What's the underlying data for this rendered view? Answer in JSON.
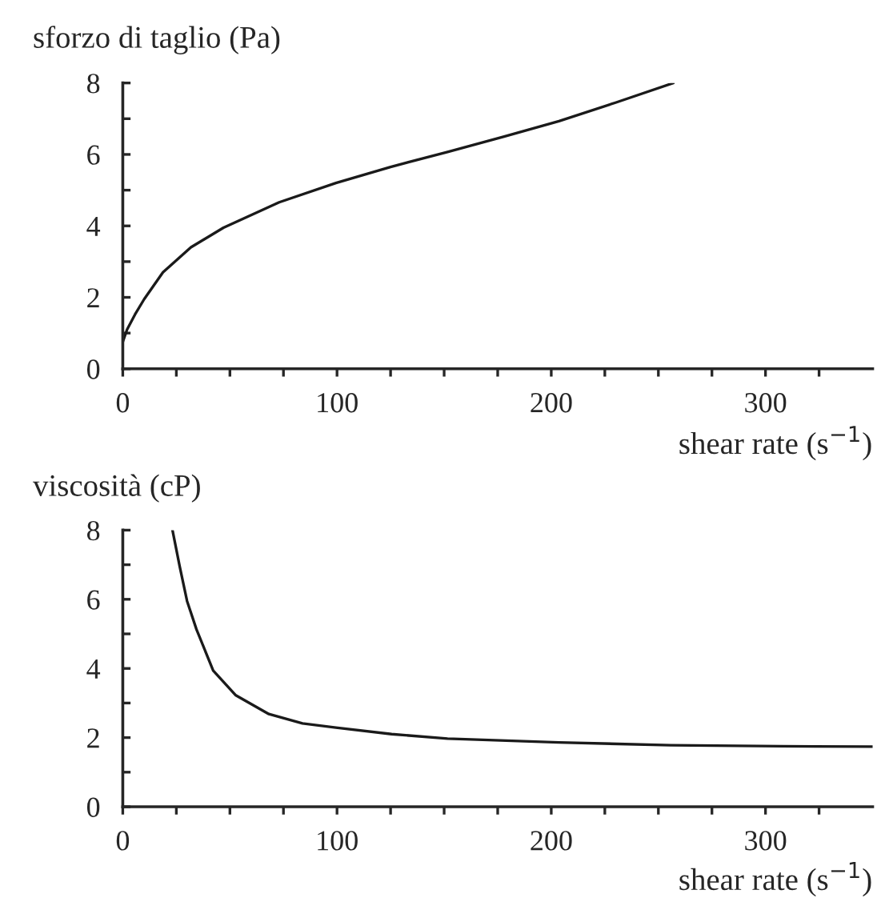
{
  "chart_data": [
    {
      "type": "line",
      "ylabel": "sforzo di taglio (Pa)",
      "xlabel": "shear rate (s$^{−1}$)",
      "series": [
        {
          "color": "#1a1a1a",
          "x": [
            0,
            2,
            5.7,
            10,
            18.75,
            31.8,
            47,
            73,
            99.5,
            125,
            151.6,
            178,
            203.6,
            230,
            257
          ],
          "values": [
            0.75,
            1.1,
            1.52,
            1.95,
            2.7,
            3.4,
            3.95,
            4.66,
            5.2,
            5.65,
            6.07,
            6.5,
            6.93,
            7.45,
            8.0
          ]
        }
      ],
      "xlim": [
        0,
        350
      ],
      "ylim": [
        0,
        8
      ],
      "xticks": [
        0,
        {
          "value": 25,
          "label": null
        },
        {
          "value": 50,
          "label": null
        },
        {
          "value": 75,
          "label": null
        },
        100,
        {
          "value": 125,
          "label": null
        },
        {
          "value": 150,
          "label": null
        },
        {
          "value": 175,
          "label": null
        },
        200,
        {
          "value": 225,
          "label": null
        },
        {
          "value": 250,
          "label": null
        },
        {
          "value": 275,
          "label": null
        },
        300,
        {
          "value": 325,
          "label": null
        }
      ],
      "yticks": [
        0,
        {
          "value": 1,
          "label": null
        },
        2,
        {
          "value": 3,
          "label": null
        },
        4,
        {
          "value": 5,
          "label": null
        },
        6,
        {
          "value": 7,
          "label": null
        },
        8
      ],
      "grid": false,
      "legend": false
    },
    {
      "type": "line",
      "ylabel": "viscosità (cP)",
      "xlabel": "shear rate (s$^{−1}$)",
      "series": [
        {
          "color": "#1a1a1a",
          "x": [
            23.2,
            26.6,
            30,
            34.4,
            42.2,
            52.6,
            68.2,
            83.9,
            99.5,
            125.5,
            151.6,
            203.6,
            255.7,
            307.8,
            350
          ],
          "values": [
            8.0,
            6.94,
            5.95,
            5.13,
            3.94,
            3.23,
            2.68,
            2.41,
            2.29,
            2.1,
            1.97,
            1.86,
            1.78,
            1.75,
            1.74
          ]
        }
      ],
      "xlim": [
        0,
        350
      ],
      "ylim": [
        0,
        8
      ],
      "xticks": [
        0,
        {
          "value": 25,
          "label": null
        },
        {
          "value": 50,
          "label": null
        },
        {
          "value": 75,
          "label": null
        },
        100,
        {
          "value": 125,
          "label": null
        },
        {
          "value": 150,
          "label": null
        },
        {
          "value": 175,
          "label": null
        },
        200,
        {
          "value": 225,
          "label": null
        },
        {
          "value": 250,
          "label": null
        },
        {
          "value": 275,
          "label": null
        },
        300,
        {
          "value": 325,
          "label": null
        }
      ],
      "yticks": [
        0,
        {
          "value": 1,
          "label": null
        },
        2,
        {
          "value": 3,
          "label": null
        },
        4,
        {
          "value": 5,
          "label": null
        },
        6,
        {
          "value": 7,
          "label": null
        },
        8
      ],
      "grid": false,
      "legend": false
    }
  ]
}
